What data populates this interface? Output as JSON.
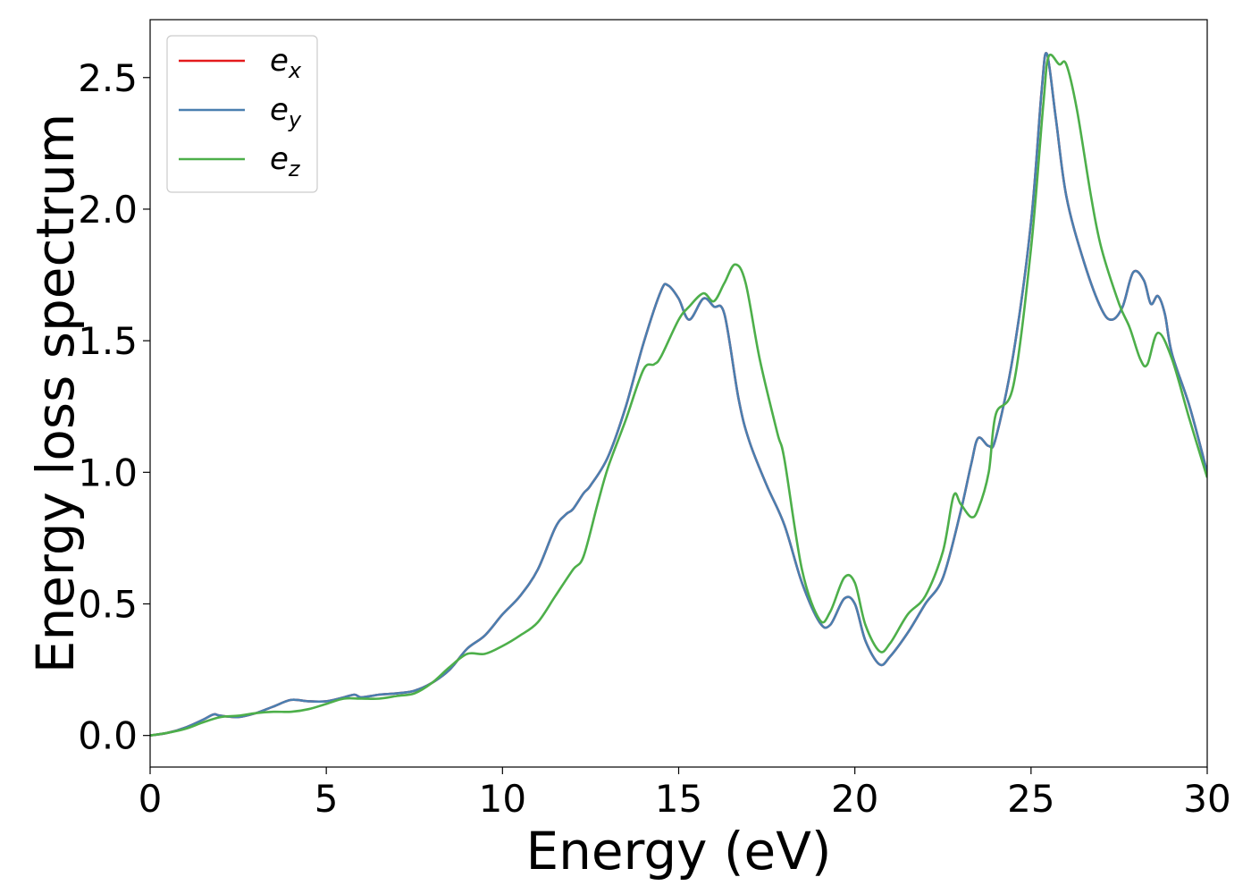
{
  "chart_data": {
    "type": "line",
    "xlabel": "Energy (eV)",
    "ylabel": "Energy loss spectrum",
    "xlim": [
      0,
      30
    ],
    "ylim": [
      -0.12,
      2.72
    ],
    "xticks": [
      0,
      5,
      10,
      15,
      20,
      25,
      30
    ],
    "xtick_labels": [
      "0",
      "5",
      "10",
      "15",
      "20",
      "25",
      "30"
    ],
    "yticks": [
      0.0,
      0.5,
      1.0,
      1.5,
      2.0,
      2.5
    ],
    "ytick_labels": [
      "0.0",
      "0.5",
      "1.0",
      "1.5",
      "2.0",
      "2.5"
    ],
    "grid": false,
    "legend_position": "top-left",
    "series": [
      {
        "name": "e_x",
        "label_base": "e",
        "label_sub": "x",
        "color": "#e41a1c",
        "x": [
          0,
          0.5,
          1.0,
          1.5,
          1.8,
          2.0,
          2.5,
          3.0,
          3.5,
          4.0,
          4.5,
          5.0,
          5.5,
          5.8,
          6.0,
          6.5,
          7.0,
          7.5,
          8.0,
          8.5,
          9.0,
          9.5,
          10.0,
          10.5,
          11.0,
          11.5,
          11.8,
          12.0,
          12.3,
          12.5,
          13.0,
          13.5,
          14.0,
          14.5,
          14.7,
          15.0,
          15.3,
          15.7,
          16.0,
          16.3,
          16.7,
          17.0,
          17.5,
          18.0,
          18.5,
          19.0,
          19.3,
          19.7,
          20.0,
          20.3,
          20.7,
          21.0,
          21.5,
          22.0,
          22.5,
          23.0,
          23.3,
          23.5,
          23.8,
          24.0,
          24.5,
          25.0,
          25.3,
          25.45,
          25.7,
          26.0,
          26.5,
          27.0,
          27.3,
          27.6,
          27.9,
          28.2,
          28.4,
          28.6,
          28.8,
          29.0,
          29.5,
          30.0
        ],
        "y": [
          0.0,
          0.01,
          0.03,
          0.06,
          0.08,
          0.075,
          0.07,
          0.085,
          0.11,
          0.135,
          0.13,
          0.13,
          0.145,
          0.155,
          0.145,
          0.155,
          0.16,
          0.17,
          0.2,
          0.25,
          0.33,
          0.38,
          0.46,
          0.53,
          0.63,
          0.79,
          0.84,
          0.86,
          0.92,
          0.95,
          1.06,
          1.25,
          1.49,
          1.69,
          1.71,
          1.66,
          1.58,
          1.66,
          1.63,
          1.6,
          1.28,
          1.12,
          0.95,
          0.8,
          0.58,
          0.43,
          0.42,
          0.52,
          0.5,
          0.36,
          0.27,
          0.3,
          0.39,
          0.5,
          0.6,
          0.85,
          1.03,
          1.13,
          1.1,
          1.13,
          1.45,
          1.95,
          2.45,
          2.59,
          2.35,
          2.05,
          1.8,
          1.62,
          1.58,
          1.63,
          1.76,
          1.73,
          1.64,
          1.67,
          1.6,
          1.45,
          1.25,
          1.0
        ]
      },
      {
        "name": "e_y",
        "label_base": "e",
        "label_sub": "y",
        "color": "#4a7fb0",
        "x": [
          0,
          0.5,
          1.0,
          1.5,
          1.8,
          2.0,
          2.5,
          3.0,
          3.5,
          4.0,
          4.5,
          5.0,
          5.5,
          5.8,
          6.0,
          6.5,
          7.0,
          7.5,
          8.0,
          8.5,
          9.0,
          9.5,
          10.0,
          10.5,
          11.0,
          11.5,
          11.8,
          12.0,
          12.3,
          12.5,
          13.0,
          13.5,
          14.0,
          14.5,
          14.7,
          15.0,
          15.3,
          15.7,
          16.0,
          16.3,
          16.7,
          17.0,
          17.5,
          18.0,
          18.5,
          19.0,
          19.3,
          19.7,
          20.0,
          20.3,
          20.7,
          21.0,
          21.5,
          22.0,
          22.5,
          23.0,
          23.3,
          23.5,
          23.8,
          24.0,
          24.5,
          25.0,
          25.3,
          25.45,
          25.7,
          26.0,
          26.5,
          27.0,
          27.3,
          27.6,
          27.9,
          28.2,
          28.4,
          28.6,
          28.8,
          29.0,
          29.5,
          30.0
        ],
        "y": [
          0.0,
          0.01,
          0.03,
          0.06,
          0.08,
          0.075,
          0.07,
          0.085,
          0.11,
          0.135,
          0.13,
          0.13,
          0.145,
          0.155,
          0.145,
          0.155,
          0.16,
          0.17,
          0.2,
          0.25,
          0.33,
          0.38,
          0.46,
          0.53,
          0.63,
          0.79,
          0.84,
          0.86,
          0.92,
          0.95,
          1.06,
          1.25,
          1.49,
          1.69,
          1.71,
          1.66,
          1.58,
          1.66,
          1.63,
          1.6,
          1.28,
          1.12,
          0.95,
          0.8,
          0.58,
          0.43,
          0.42,
          0.52,
          0.5,
          0.36,
          0.27,
          0.3,
          0.39,
          0.5,
          0.6,
          0.85,
          1.03,
          1.13,
          1.1,
          1.13,
          1.45,
          1.95,
          2.45,
          2.59,
          2.35,
          2.05,
          1.8,
          1.62,
          1.58,
          1.63,
          1.76,
          1.73,
          1.64,
          1.67,
          1.6,
          1.45,
          1.25,
          1.0
        ]
      },
      {
        "name": "e_z",
        "label_base": "e",
        "label_sub": "z",
        "color": "#4daf4a",
        "x": [
          0,
          0.5,
          1.0,
          1.5,
          2.0,
          2.5,
          3.0,
          3.5,
          4.0,
          4.5,
          5.0,
          5.5,
          6.0,
          6.5,
          7.0,
          7.5,
          8.0,
          8.5,
          9.0,
          9.5,
          10.0,
          10.5,
          11.0,
          11.5,
          12.0,
          12.3,
          12.7,
          13.0,
          13.5,
          14.0,
          14.3,
          14.5,
          15.0,
          15.3,
          15.7,
          16.0,
          16.3,
          16.6,
          16.9,
          17.3,
          17.8,
          18.0,
          18.5,
          19.0,
          19.3,
          19.7,
          20.0,
          20.3,
          20.7,
          21.0,
          21.5,
          22.0,
          22.5,
          22.8,
          23.0,
          23.3,
          23.5,
          23.8,
          24.0,
          24.5,
          25.0,
          25.35,
          25.5,
          25.8,
          26.0,
          26.3,
          26.7,
          27.0,
          27.5,
          27.8,
          28.1,
          28.3,
          28.6,
          29.0,
          29.5,
          30.0
        ],
        "y": [
          0.0,
          0.01,
          0.025,
          0.05,
          0.07,
          0.075,
          0.085,
          0.09,
          0.09,
          0.1,
          0.12,
          0.14,
          0.14,
          0.14,
          0.15,
          0.16,
          0.2,
          0.26,
          0.31,
          0.31,
          0.34,
          0.38,
          0.43,
          0.53,
          0.63,
          0.68,
          0.88,
          1.02,
          1.2,
          1.39,
          1.41,
          1.44,
          1.58,
          1.63,
          1.68,
          1.65,
          1.72,
          1.79,
          1.72,
          1.43,
          1.15,
          1.05,
          0.63,
          0.44,
          0.47,
          0.6,
          0.58,
          0.42,
          0.32,
          0.35,
          0.46,
          0.53,
          0.7,
          0.91,
          0.88,
          0.83,
          0.86,
          1.0,
          1.22,
          1.33,
          1.85,
          2.4,
          2.58,
          2.55,
          2.55,
          2.38,
          2.05,
          1.85,
          1.64,
          1.55,
          1.43,
          1.41,
          1.53,
          1.43,
          1.2,
          0.98
        ]
      }
    ]
  }
}
